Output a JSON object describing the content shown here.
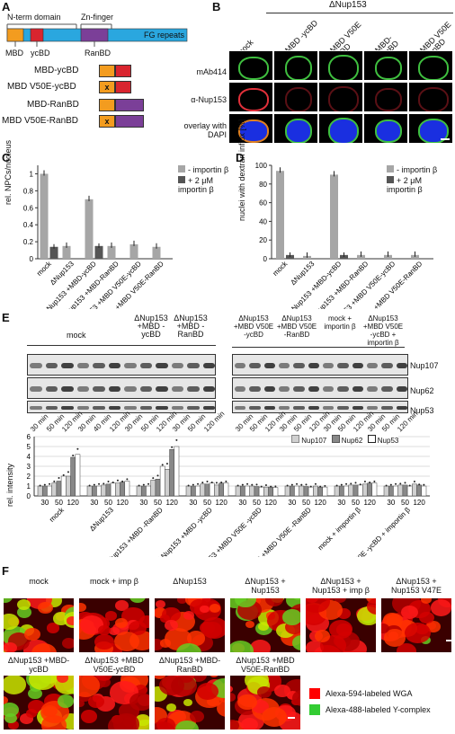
{
  "panelA": {
    "label": "A",
    "domains": {
      "nterm": "N-term domain",
      "znfinger": "Zn-finger",
      "fg": "FG repeats",
      "mbd": "MBD",
      "ycbd": "ycBD",
      "ranbd": "RanBD"
    },
    "constructs": [
      "MBD-ycBD",
      "MBD V50E-ycBD",
      "MBD-RanBD",
      "MBD V50E-RanBD"
    ],
    "mutation_mark": "x",
    "colors": {
      "mbd": "#f39c1f",
      "ycbd": "#d9252f",
      "ranbd": "#7b3f98",
      "fg": "#2aa7df"
    }
  },
  "panelB": {
    "label": "B",
    "header": "ΔNup153",
    "columns": [
      "mock",
      "+MBD -ycBD",
      "+MBD V50E -ycBD",
      "+MBD- RanBD",
      "+MBD V50E -RanBD"
    ],
    "rows": [
      "mAb414",
      "α-Nup153",
      "overlay with DAPI"
    ]
  },
  "panelC": {
    "label": "C",
    "ylabel": "rel. NPCs/nucleus",
    "legend": [
      "- importin β",
      "+ 2 μM importin β"
    ],
    "xlabels": [
      "mock",
      "ΔNup153",
      "ΔNup153 +MBD-ycBD",
      "ΔNup153 +MBD-RanBD",
      "ΔNup153 +MBD V50E-ycBD",
      "ΔNup153 +MBD V50E-RanBD"
    ],
    "chart_data": {
      "type": "bar",
      "categories": [
        "mock",
        "ΔNup153",
        "ΔNup153 +MBD-ycBD",
        "ΔNup153 +MBD-RanBD",
        "ΔNup153 +MBD V50E-ycBD",
        "ΔNup153 +MBD V50E-RanBD"
      ],
      "series": [
        {
          "name": "- importin β",
          "values": [
            1.0,
            0.15,
            0.7,
            0.15,
            0.17,
            0.14
          ]
        },
        {
          "name": "+ 2 μM importin β",
          "values": [
            0.14,
            null,
            0.15,
            null,
            null,
            null
          ]
        }
      ],
      "yticks": [
        "0",
        "0.2",
        "0.4",
        "0.6",
        "0.8",
        "1"
      ],
      "ylim": [
        0,
        1.1
      ]
    }
  },
  "panelD": {
    "label": "D",
    "ylabel": "nuclei with dextran influx [%]",
    "legend": [
      "- importin β",
      "+ 2 μM importin β"
    ],
    "xlabels": [
      "mock",
      "ΔNup153",
      "ΔNup153 +MBD-ycBD",
      "ΔNup153 +MBD-RanBD",
      "ΔNup153 +MBD V50E-ycBD",
      "ΔNup153 +MBD V50E-RanBD"
    ],
    "chart_data": {
      "type": "bar",
      "categories": [
        "mock",
        "ΔNup153",
        "ΔNup153 +MBD-ycBD",
        "ΔNup153 +MBD-RanBD",
        "ΔNup153 +MBD V50E-ycBD",
        "ΔNup153 +MBD V50E-RanBD"
      ],
      "series": [
        {
          "name": "- importin β",
          "values": [
            94,
            3,
            90,
            4,
            4,
            4
          ]
        },
        {
          "name": "+ 2 μM importin β",
          "values": [
            4,
            null,
            4,
            null,
            null,
            null
          ]
        }
      ],
      "yticks": [
        "0",
        "20",
        "40",
        "60",
        "80",
        "100"
      ],
      "ylim": [
        0,
        100
      ]
    }
  },
  "panelE": {
    "label": "E",
    "left_groups": [
      "mock",
      "ΔNup153 +MBD -ycBD",
      "ΔNup153 +MBD -RanBD"
    ],
    "right_groups": [
      "ΔNup153 +MBD V50E -ycBD",
      "ΔNup153 +MBD V50E -RanBD",
      "mock + importin β",
      "ΔNup153 +MBD V50E -ycBD + importin β"
    ],
    "blot_labels": [
      "Nup107",
      "Nup62",
      "Nup53"
    ],
    "time_left": [
      "30 min",
      "50 min",
      "120 min",
      "30 min",
      "40 min",
      "120 min",
      "30 min",
      "50 min",
      "120 min",
      "30 min",
      "50 min",
      "120 min"
    ],
    "time_right": [
      "30 min",
      "50 min",
      "120 min",
      "30 min",
      "50 min",
      "120 min",
      "30 min",
      "50 min",
      "120 min",
      "30 min",
      "50 min",
      "120 min"
    ],
    "ylabel": "rel. intensity",
    "legend": [
      "Nup107",
      "Nup62",
      "Nup53"
    ],
    "tick_times": [
      "30",
      "50",
      "120"
    ],
    "group_labels": [
      "mock",
      "ΔNup153",
      "ΔNup153 +MBD -RanBD",
      "ΔNup153 +MBD -ycBD",
      "ΔNup153 +MBD V50E -ycBD",
      "ΔNup153 +MBD V50E -RanBD",
      "mock + importin β",
      "ΔNup153 +MBD V50E -ycBD + importin β"
    ],
    "chart_data": {
      "type": "bar",
      "categories": [
        "mock 30",
        "mock 50",
        "mock 120",
        "ΔNup153 30",
        "ΔNup153 50",
        "ΔNup153 120",
        "RanBD 30",
        "RanBD 50",
        "RanBD 120",
        "ycBD 30",
        "ycBD 50",
        "ycBD 120",
        "V50E-ycBD 30",
        "V50E-ycBD 50",
        "V50E-ycBD 120",
        "V50E-RanBD 30",
        "V50E-RanBD 50",
        "V50E-RanBD 120",
        "mock+imp 30",
        "mock+imp 50",
        "mock+imp 120",
        "V50E-ycBD+imp 30",
        "V50E-ycBD+imp 50",
        "V50E-ycBD+imp 120"
      ],
      "series": [
        {
          "name": "Nup107",
          "values": [
            1.0,
            1.3,
            2.0,
            1.0,
            1.1,
            1.3,
            1.0,
            1.6,
            2.7,
            1.0,
            1.2,
            1.1,
            1.0,
            1.0,
            0.9,
            1.0,
            1.0,
            1.0,
            1.0,
            1.1,
            1.2,
            1.0,
            1.1,
            1.2
          ]
        },
        {
          "name": "Nup62",
          "values": [
            1.0,
            1.5,
            3.9,
            1.0,
            1.2,
            1.4,
            1.0,
            1.7,
            4.7,
            1.0,
            1.2,
            1.3,
            1.0,
            0.95,
            0.9,
            1.0,
            0.95,
            0.9,
            1.0,
            1.1,
            1.3,
            1.0,
            1.1,
            1.1
          ]
        },
        {
          "name": "Nup53",
          "values": [
            1.0,
            2.0,
            4.2,
            1.0,
            1.3,
            1.5,
            1.0,
            3.0,
            5.0,
            1.0,
            1.3,
            1.3,
            1.0,
            0.9,
            0.85,
            1.0,
            0.9,
            0.9,
            1.0,
            1.1,
            1.3,
            1.0,
            1.0,
            1.0
          ]
        }
      ],
      "yticks": [
        "0",
        "1",
        "2",
        "3",
        "4",
        "5",
        "6"
      ],
      "ylim": [
        0,
        6
      ]
    }
  },
  "panelF": {
    "label": "F",
    "top_row": [
      "mock",
      "mock + imp β",
      "ΔNup153",
      "ΔNup153 + Nup153",
      "ΔNup153 + Nup153 + imp β",
      "ΔNup153 + Nup153 V47E"
    ],
    "bottom_row": [
      "ΔNup153 +MBD-ycBD",
      "ΔNup153 +MBD V50E-ycBD",
      "ΔNup153 +MBD-RanBD",
      "ΔNup153 +MBD V50E-RanBD"
    ],
    "legend": [
      "Alexa-594-labeled WGA",
      "Alexa-488-labeled Y-complex"
    ],
    "colors": {
      "red": "#ff0000",
      "green": "#33cc33"
    }
  }
}
